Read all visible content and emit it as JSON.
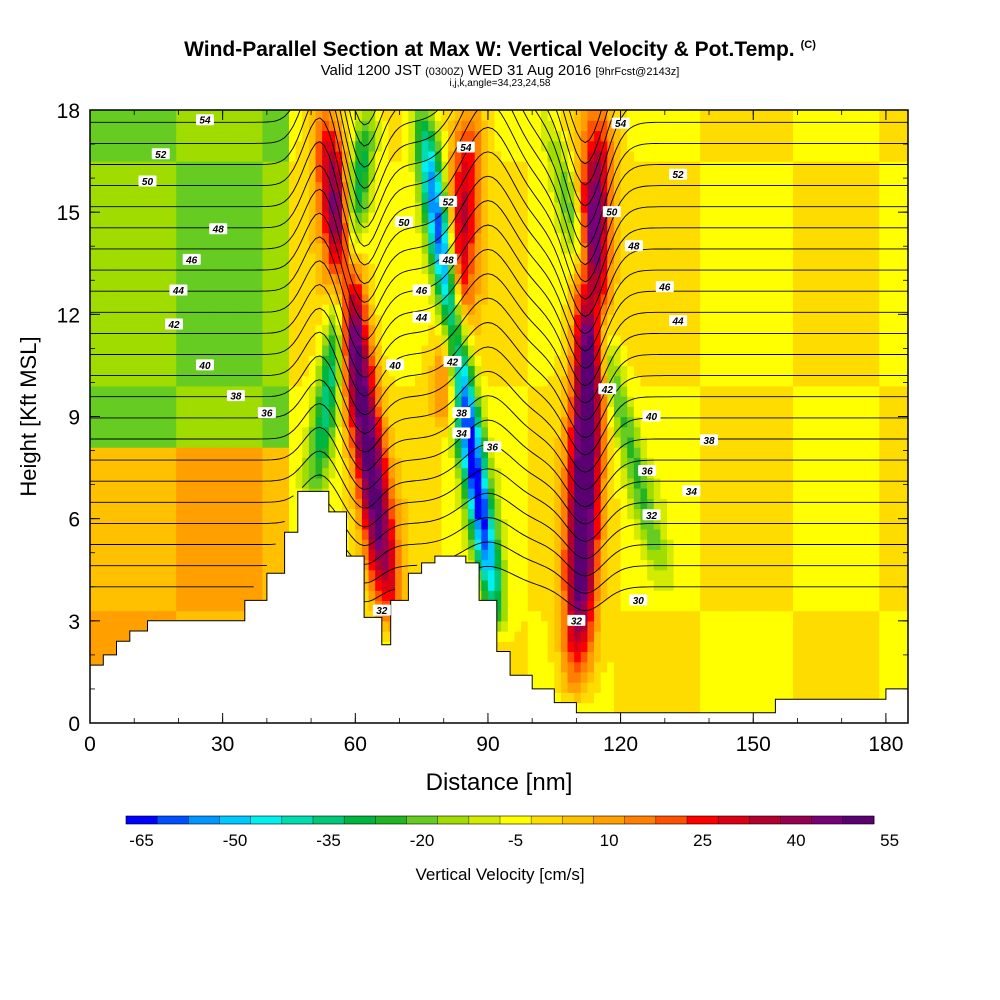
{
  "header": {
    "title": "Wind-Parallel Section at Max W: Vertical Velocity & Pot.Temp.",
    "copyright": "(C)",
    "subtitle_a": "Valid 1200 JST",
    "subtitle_b": "(0300Z)",
    "subtitle_c": "WED 31 Aug 2016",
    "subtitle_d": "[9hrFcst@2143z]",
    "info": "i,j,k,angle=34,23,24,58"
  },
  "chart_data": {
    "type": "heatmap",
    "title": "Wind-Parallel Section at Max W: Vertical Velocity & Pot.Temp.",
    "xlabel": "Distance [nm]",
    "ylabel": "Height [Kft MSL]",
    "xlim": [
      0,
      185
    ],
    "ylim": [
      0,
      18
    ],
    "xticks": [
      0,
      30,
      60,
      90,
      120,
      150,
      180
    ],
    "yticks": [
      0,
      3,
      6,
      9,
      12,
      15,
      18
    ],
    "colorbar": {
      "label": "Vertical Velocity [cm/s]",
      "min": -65,
      "max": 60,
      "step": 5,
      "tick_values": [
        -65,
        -50,
        -35,
        -20,
        -5,
        10,
        25,
        40,
        55
      ],
      "colors": [
        "#0000ff",
        "#0050ff",
        "#0096ff",
        "#00c8ff",
        "#00f0f0",
        "#00dcb0",
        "#00c878",
        "#00b440",
        "#22b422",
        "#66cc22",
        "#a0dc00",
        "#d2eb00",
        "#ffff00",
        "#ffdc00",
        "#ffc000",
        "#ffa000",
        "#ff8000",
        "#ff5000",
        "#ff0000",
        "#dc0014",
        "#b4002d",
        "#960050",
        "#780078",
        "#5a0073"
      ]
    },
    "terrain_kft": {
      "x": [
        0,
        3,
        6,
        9,
        13,
        17,
        22,
        30,
        35,
        40,
        44,
        47,
        50,
        54,
        58,
        62,
        66,
        68,
        72,
        75,
        78,
        81,
        85,
        88,
        92,
        95,
        100,
        105,
        110,
        115,
        120,
        125,
        130,
        135,
        140,
        145,
        150,
        155,
        160,
        165,
        170,
        175,
        180,
        185
      ],
      "y": [
        1.7,
        2.0,
        2.4,
        2.7,
        3.0,
        3.0,
        3.0,
        3.0,
        3.6,
        4.4,
        5.6,
        6.8,
        6.8,
        6.2,
        4.9,
        3.1,
        2.3,
        3.6,
        4.4,
        4.7,
        4.9,
        4.9,
        4.7,
        3.6,
        2.1,
        1.4,
        1.0,
        0.6,
        0.3,
        0.3,
        0.3,
        0.3,
        0.3,
        0.3,
        0.3,
        0.3,
        0.3,
        0.7,
        0.7,
        0.7,
        0.7,
        0.7,
        1.0,
        1.0
      ]
    },
    "background_w_cms": [
      {
        "x_range": [
          0,
          45
        ],
        "y_range": [
          0,
          8
        ],
        "w": 10
      },
      {
        "x_range": [
          0,
          45
        ],
        "y_range": [
          8,
          18
        ],
        "w": -15
      },
      {
        "x_range": [
          125,
          185
        ],
        "y_range": [
          0,
          18
        ],
        "w": 0
      }
    ],
    "updrafts": [
      {
        "x_top": 53,
        "x_bottom": 68,
        "y_top": 18,
        "y_bottom": 3,
        "peak_w": 55
      },
      {
        "x_top": 86,
        "x_bottom": 81,
        "y_top": 18,
        "y_bottom": 9,
        "peak_w": 35
      },
      {
        "x_top": 115,
        "x_bottom": 110,
        "y_top": 18,
        "y_bottom": 1,
        "peak_w": 60
      }
    ],
    "downdrafts": [
      {
        "x_top": 63,
        "x_bottom": 51,
        "y_top": 18,
        "y_bottom": 7,
        "peak_w": -35
      },
      {
        "x_top": 75,
        "x_bottom": 92,
        "y_top": 18,
        "y_bottom": 3,
        "peak_w": -65
      },
      {
        "x_top": 103,
        "x_bottom": 130,
        "y_top": 18,
        "y_bottom": 4,
        "peak_w": -20
      }
    ],
    "theta_contour_labels": [
      {
        "x": 26,
        "y": 17.7,
        "text": "54"
      },
      {
        "x": 16,
        "y": 16.7,
        "text": "52"
      },
      {
        "x": 13,
        "y": 15.9,
        "text": "50"
      },
      {
        "x": 29,
        "y": 14.5,
        "text": "48"
      },
      {
        "x": 23,
        "y": 13.6,
        "text": "46"
      },
      {
        "x": 20,
        "y": 12.7,
        "text": "44"
      },
      {
        "x": 19,
        "y": 11.7,
        "text": "42"
      },
      {
        "x": 26,
        "y": 10.5,
        "text": "40"
      },
      {
        "x": 33,
        "y": 9.6,
        "text": "38"
      },
      {
        "x": 40,
        "y": 9.1,
        "text": "36"
      },
      {
        "x": 85,
        "y": 16.9,
        "text": "54"
      },
      {
        "x": 81,
        "y": 15.3,
        "text": "52"
      },
      {
        "x": 71,
        "y": 14.7,
        "text": "50"
      },
      {
        "x": 81,
        "y": 13.6,
        "text": "48"
      },
      {
        "x": 75,
        "y": 12.7,
        "text": "46"
      },
      {
        "x": 75,
        "y": 11.9,
        "text": "44"
      },
      {
        "x": 69,
        "y": 10.5,
        "text": "40"
      },
      {
        "x": 82,
        "y": 10.6,
        "text": "42"
      },
      {
        "x": 84,
        "y": 9.1,
        "text": "38"
      },
      {
        "x": 84,
        "y": 8.5,
        "text": "34"
      },
      {
        "x": 91,
        "y": 8.1,
        "text": "36"
      },
      {
        "x": 66,
        "y": 3.3,
        "text": "32"
      },
      {
        "x": 110,
        "y": 3.0,
        "text": "32"
      },
      {
        "x": 120,
        "y": 17.6,
        "text": "54"
      },
      {
        "x": 133,
        "y": 16.1,
        "text": "52"
      },
      {
        "x": 118,
        "y": 15.0,
        "text": "50"
      },
      {
        "x": 123,
        "y": 14.0,
        "text": "48"
      },
      {
        "x": 130,
        "y": 12.8,
        "text": "46"
      },
      {
        "x": 133,
        "y": 11.8,
        "text": "44"
      },
      {
        "x": 117,
        "y": 9.8,
        "text": "42"
      },
      {
        "x": 127,
        "y": 9.0,
        "text": "40"
      },
      {
        "x": 140,
        "y": 8.3,
        "text": "38"
      },
      {
        "x": 126,
        "y": 7.4,
        "text": "36"
      },
      {
        "x": 136,
        "y": 6.8,
        "text": "34"
      },
      {
        "x": 127,
        "y": 6.1,
        "text": "32"
      },
      {
        "x": 124,
        "y": 3.6,
        "text": "30"
      }
    ],
    "grid": false,
    "legend": "colorbar-bottom"
  }
}
